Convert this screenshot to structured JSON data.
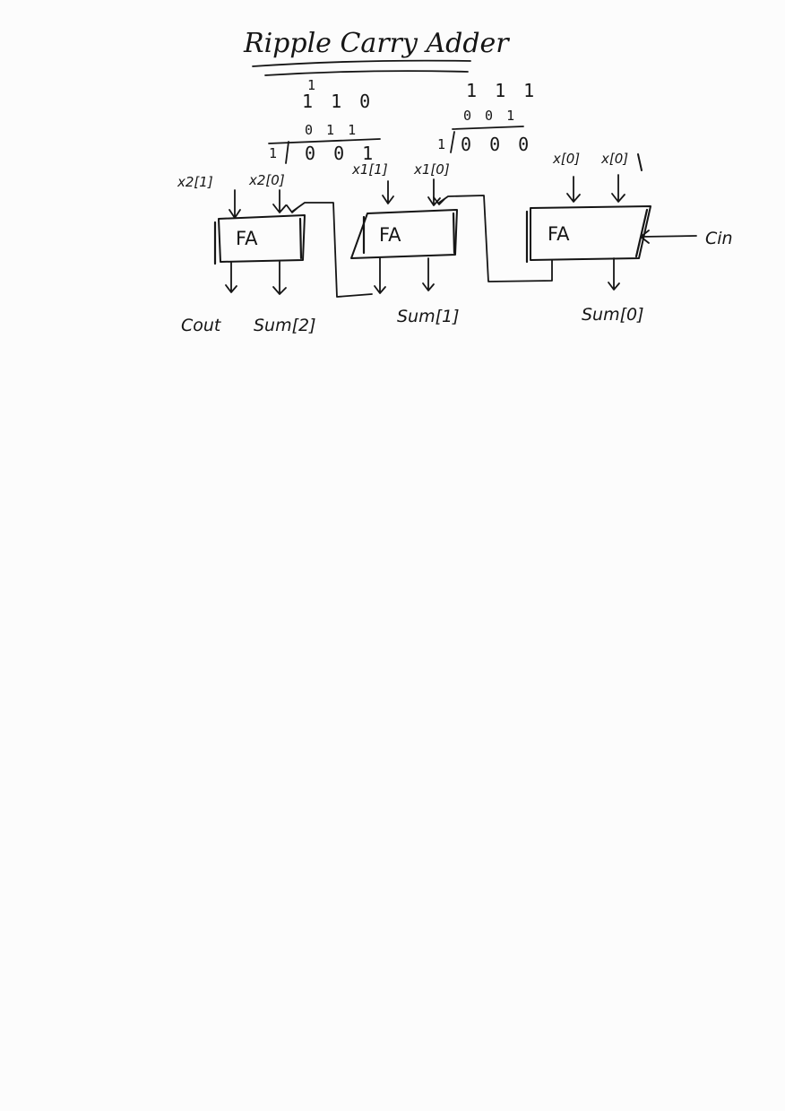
{
  "title": "Ripple Carry Adder",
  "calc_left": {
    "carry": "1",
    "row1": "1 1 0",
    "row2": "0 1 1",
    "result_carry": "1",
    "result": "0 0 1"
  },
  "calc_right": {
    "carries": "1 1 1",
    "row1": "0 0 1",
    "result_carry": "1",
    "result": "0 0 0"
  },
  "blocks": [
    {
      "label": "FA",
      "in_a": "x2[1]",
      "in_b": "x2[0]",
      "carry_out": "Cout",
      "sum": "Sum[2]"
    },
    {
      "label": "FA",
      "in_a": "x1[1]",
      "in_b": "x1[0]",
      "sum": "Sum[1]"
    },
    {
      "label": "FA",
      "in_a": "x[0]",
      "in_b": "x[0]",
      "sum": "Sum[0]",
      "carry_in": "Cin"
    }
  ],
  "colors": {
    "ink": "#151515",
    "paper": "#fcfcfc"
  }
}
